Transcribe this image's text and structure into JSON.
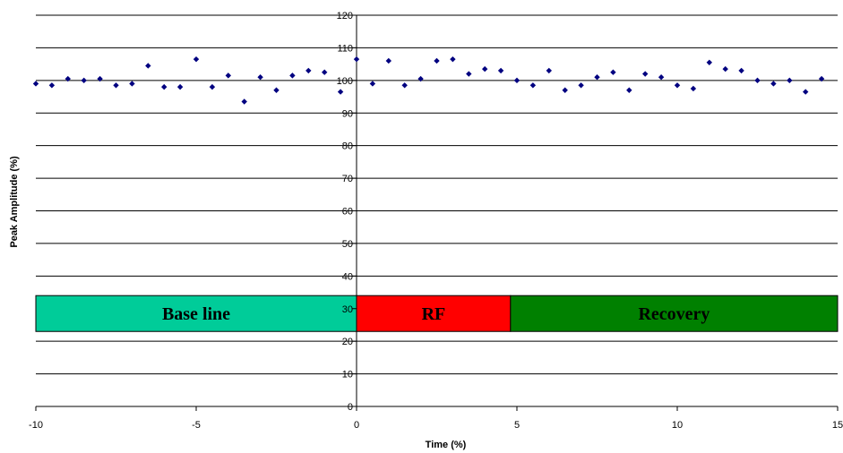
{
  "chart_data": {
    "type": "scatter",
    "title": "",
    "xlabel": "Time (%)",
    "ylabel": "Peak Amplitude (%)",
    "xlim": [
      -10,
      15
    ],
    "ylim": [
      0,
      120
    ],
    "x_ticks": [
      -10,
      -5,
      0,
      5,
      10,
      15
    ],
    "y_ticks": [
      0,
      10,
      20,
      30,
      40,
      50,
      60,
      70,
      80,
      90,
      100,
      110,
      120
    ],
    "grid": "horizontal",
    "legend": "none",
    "marker_color": "#000080",
    "series": [
      {
        "x": [
          -10,
          -9.5,
          -9,
          -8.5,
          -8,
          -7.5,
          -7,
          -6.5,
          -6,
          -5.5,
          -5,
          -4.5,
          -4,
          -3.5,
          -3,
          -2.5,
          -2,
          -1.5,
          -1,
          -0.5,
          0,
          0.5,
          1,
          1.5,
          2,
          2.5,
          3,
          3.5,
          4,
          4.5,
          5,
          5.5,
          6,
          6.5,
          7,
          7.5,
          8,
          8.5,
          9,
          9.5,
          10,
          10.5,
          11,
          11.5,
          12,
          12.5,
          13,
          13.5,
          14,
          14.5
        ],
        "y": [
          99,
          98.5,
          100.5,
          100,
          100.5,
          98.5,
          99,
          104.5,
          98,
          98,
          106.5,
          98,
          101.5,
          93.5,
          101,
          97,
          101.5,
          103,
          102.5,
          96.5,
          106.5,
          99,
          106,
          98.5,
          100.5,
          106,
          106.5,
          102,
          103.5,
          103,
          100,
          98.5,
          103,
          97,
          98.5,
          101,
          102.5,
          97,
          102,
          101,
          98.5,
          97.5,
          105.5,
          103.5,
          103,
          100,
          99,
          100,
          96.5,
          100.5
        ]
      }
    ],
    "annotations": [
      {
        "label": "Base line",
        "x_start": -10,
        "x_end": 0,
        "y_low": 23,
        "y_high": 34,
        "color": "#00CC99"
      },
      {
        "label": "RF",
        "x_start": 0,
        "x_end": 4.8,
        "y_low": 23,
        "y_high": 34,
        "color": "#FF0000"
      },
      {
        "label": "Recovery",
        "x_start": 4.8,
        "x_end": 15,
        "y_low": 23,
        "y_high": 34,
        "color": "#008000"
      }
    ]
  }
}
